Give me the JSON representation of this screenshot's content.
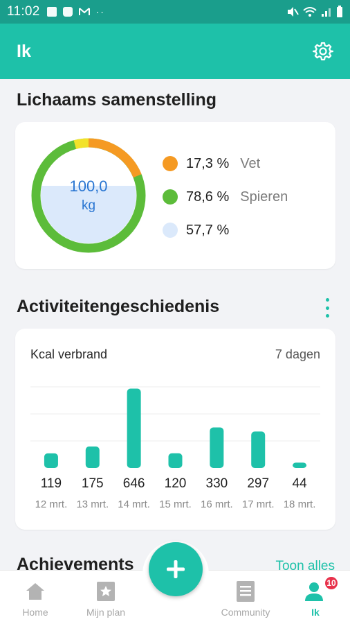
{
  "status_bar": {
    "time": "11:02"
  },
  "app_bar": {
    "title": "Ik"
  },
  "body_composition": {
    "title": "Lichaams samenstelling",
    "weight": "100,0",
    "unit": "kg",
    "legend": [
      {
        "pct": "17,3 %",
        "label": "Vet",
        "color": "#f59a23"
      },
      {
        "pct": "78,6 %",
        "label": "Spieren",
        "color": "#5cbc3a"
      },
      {
        "pct": "57,7 %",
        "label": "",
        "color": "#dbe9fb"
      }
    ],
    "colors": {
      "muscle": "#5cbc3a",
      "fat": "#f59a23",
      "other": "#f2e22a",
      "water": "#dbe9fb"
    }
  },
  "activity": {
    "title": "Activiteitengeschiedenis",
    "card_title": "Kcal verbrand",
    "period": "7 dagen"
  },
  "chart_data": {
    "type": "bar",
    "title": "Kcal verbrand",
    "categories": [
      "12 mrt.",
      "13 mrt.",
      "14 mrt.",
      "15 mrt.",
      "16 mrt.",
      "17 mrt.",
      "18 mrt."
    ],
    "values": [
      119,
      175,
      646,
      120,
      330,
      297,
      44
    ],
    "color": "#1ec1a9",
    "grid": true
  },
  "achievements": {
    "title": "Achievements",
    "link": "Toon alles"
  },
  "bottom_nav": {
    "items": [
      {
        "label": "Home",
        "icon": "home-icon"
      },
      {
        "label": "Mijn plan",
        "icon": "star-icon"
      },
      {
        "label": "Community",
        "icon": "book-icon"
      },
      {
        "label": "Ik",
        "icon": "person-icon"
      }
    ],
    "badge": "10"
  }
}
